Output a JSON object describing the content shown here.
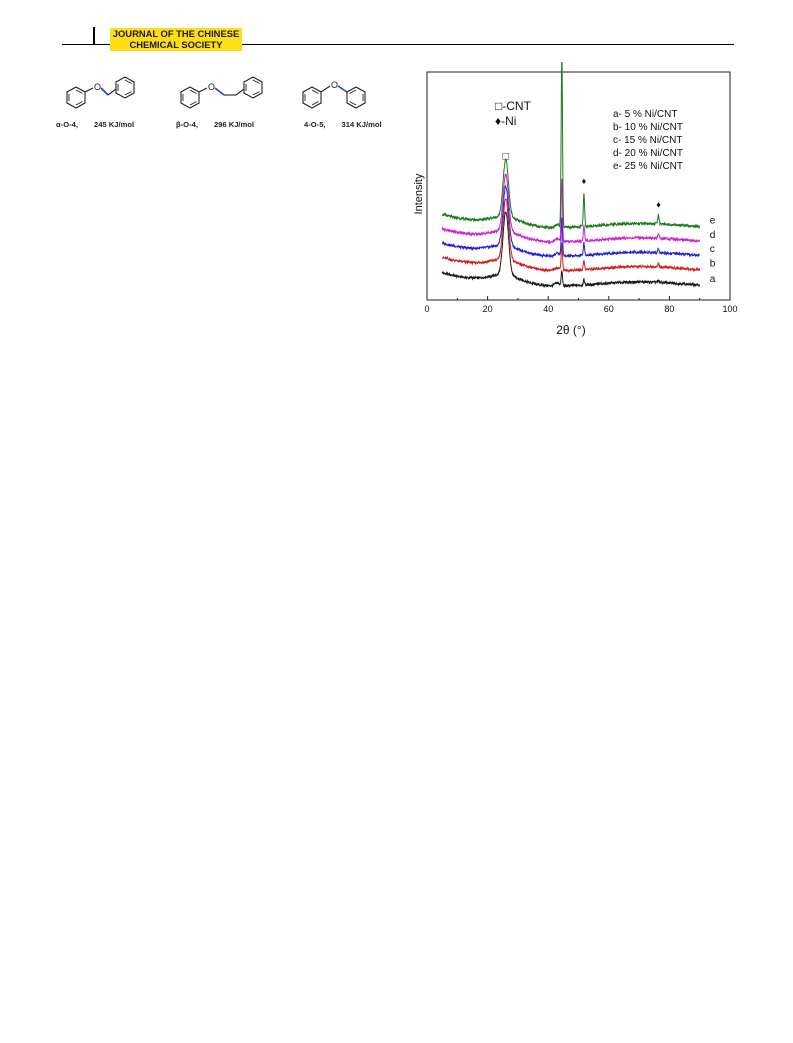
{
  "header": {
    "journal_line1": "JOURNAL OF THE CHINESE",
    "journal_line2": "CHEMICAL SOCIETY"
  },
  "scheme": {
    "molecules": [
      {
        "name": "α-O-4,",
        "energy": "245 KJ/mol",
        "hetero_atom": "O"
      },
      {
        "name": "β-O-4,",
        "energy": "296 KJ/mol",
        "hetero_atom": "O"
      },
      {
        "name": "4-O-5,",
        "energy": "314 KJ/mol",
        "hetero_atom": "O"
      }
    ],
    "highlight_color": "#1f3fd9"
  },
  "chart_data": {
    "type": "line",
    "title": "",
    "xlabel": "2θ (°)",
    "ylabel": "Intensity",
    "xlim": [
      0,
      100
    ],
    "xticks": [
      0,
      20,
      40,
      60,
      80,
      100
    ],
    "y_ticks_shown": false,
    "grid": false,
    "legend": {
      "placement": "top-right",
      "entries": [
        "a- 5 % Ni/CNT",
        "b- 10 % Ni/CNT",
        "c- 15 % Ni/CNT",
        "d- 20 % Ni/CNT",
        "e- 25 % Ni/CNT"
      ]
    },
    "marker_legend": [
      {
        "symbol": "□",
        "label": "-CNT"
      },
      {
        "symbol": "♦",
        "label": "-Ni"
      }
    ],
    "series": [
      {
        "name": "a",
        "color": "#1a1a1a",
        "baseline": 0.0,
        "x_range": [
          5,
          90
        ],
        "peaks": [
          {
            "x": 26,
            "h": 0.31
          },
          {
            "x": 44.5,
            "h": 0.07
          },
          {
            "x": 51.8,
            "h": 0.025
          },
          {
            "x": 76.4,
            "h": 0.008
          }
        ]
      },
      {
        "name": "b",
        "color": "#d02020",
        "baseline": 0.075,
        "x_range": [
          5,
          90
        ],
        "peaks": [
          {
            "x": 26,
            "h": 0.3
          },
          {
            "x": 44.5,
            "h": 0.13
          },
          {
            "x": 51.8,
            "h": 0.045
          },
          {
            "x": 76.4,
            "h": 0.015
          }
        ]
      },
      {
        "name": "c",
        "color": "#2020cc",
        "baseline": 0.145,
        "x_range": [
          5,
          90
        ],
        "peaks": [
          {
            "x": 26,
            "h": 0.29
          },
          {
            "x": 44.5,
            "h": 0.18
          },
          {
            "x": 51.8,
            "h": 0.06
          },
          {
            "x": 76.4,
            "h": 0.02
          }
        ]
      },
      {
        "name": "d",
        "color": "#cc22cc",
        "baseline": 0.215,
        "x_range": [
          5,
          90
        ],
        "peaks": [
          {
            "x": 26,
            "h": 0.28
          },
          {
            "x": 44.5,
            "h": 0.3
          },
          {
            "x": 51.8,
            "h": 0.075
          },
          {
            "x": 76.4,
            "h": 0.025
          }
        ]
      },
      {
        "name": "e",
        "color": "#1a7a1a",
        "baseline": 0.285,
        "x_range": [
          5,
          90
        ],
        "peaks": [
          {
            "x": 26,
            "h": 0.28
          },
          {
            "x": 44.5,
            "h": 0.84
          },
          {
            "x": 51.8,
            "h": 0.16
          },
          {
            "x": 76.4,
            "h": 0.045
          }
        ]
      }
    ],
    "markers": [
      {
        "symbol": "□",
        "x": 26
      },
      {
        "symbol": "♦",
        "x": 44.5
      },
      {
        "symbol": "♦",
        "x": 51.8
      },
      {
        "symbol": "♦",
        "x": 76.4
      }
    ]
  }
}
